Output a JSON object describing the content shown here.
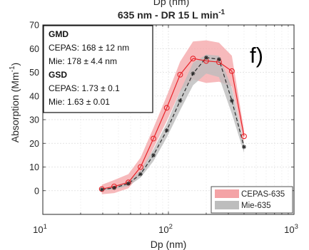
{
  "chart_data": {
    "type": "line",
    "title": "635 nm - DR 15 L min",
    "title_superscript": "-1",
    "top_cut_label": "Dp (nm)",
    "xlabel": "Dp (nm)",
    "ylabel": "Absorption (Mm",
    "ylabel_superscript": "-1",
    "ylabel_suffix": ")",
    "x_scale": "log",
    "xlim": [
      10,
      1000
    ],
    "ylim": [
      -10,
      70
    ],
    "x_ticks": [
      10,
      100,
      1000
    ],
    "x_tick_labels": [
      {
        "base": "10",
        "exp": "1"
      },
      {
        "base": "10",
        "exp": "2"
      },
      {
        "base": "10",
        "exp": "3"
      }
    ],
    "y_ticks": [
      0,
      10,
      20,
      30,
      40,
      50,
      60,
      70
    ],
    "y_tick_labels": [
      "0",
      "10",
      "20",
      "30",
      "40",
      "50",
      "60",
      "70"
    ],
    "grid": true,
    "panel_letter": "f)",
    "annotation": {
      "gmd_heading": "GMD",
      "gmd_cepas": "CEPAS: 168 ± 12 nm",
      "gmd_mie": "Mie: 178 ± 4.4 nm",
      "gsd_heading": "GSD",
      "gsd_cepas": "CEPAS: 1.73 ± 0.1",
      "gsd_mie": "Mie: 1.63 ± 0.01"
    },
    "legend_position": "bottom-right",
    "series": [
      {
        "name": "CEPAS-635",
        "color": "#e8242a",
        "band_color": "#f4a3a6",
        "marker": "circle",
        "line_style": "solid",
        "x": [
          29.5,
          37,
          48,
          60,
          76,
          97,
          124,
          157,
          200,
          253,
          320,
          400
        ],
        "y": [
          0.7,
          1.8,
          3.5,
          10.0,
          22.0,
          35.0,
          49.0,
          55.8,
          54.8,
          54.3,
          50.5,
          23.0
        ],
        "lower": [
          -1.5,
          -1.0,
          1.0,
          7.0,
          18.0,
          29.5,
          42.0,
          47.0,
          45.5,
          46.0,
          44.0,
          20.5
        ],
        "upper": [
          2.5,
          4.5,
          7.0,
          14.0,
          26.5,
          40.0,
          54.5,
          63.0,
          63.5,
          62.5,
          57.0,
          25.5
        ]
      },
      {
        "name": "Mie-635",
        "color": "#2b2b2b",
        "band_color": "#bdbdbd",
        "marker": "star",
        "line_style": "dashed",
        "x": [
          29.5,
          37,
          48,
          60,
          76,
          97,
          124,
          157,
          200,
          253,
          320,
          400
        ],
        "y": [
          0.5,
          1.2,
          3.0,
          7.0,
          15.0,
          25.5,
          38.0,
          49.5,
          56.2,
          55.5,
          38.0,
          18.5
        ],
        "lower": [
          0.0,
          0.6,
          2.0,
          5.5,
          12.5,
          22.5,
          34.0,
          44.5,
          49.5,
          48.0,
          32.5,
          16.0
        ],
        "upper": [
          1.0,
          1.8,
          4.0,
          8.5,
          17.5,
          28.5,
          42.0,
          54.0,
          57.5,
          57.0,
          43.5,
          20.0
        ]
      }
    ]
  }
}
